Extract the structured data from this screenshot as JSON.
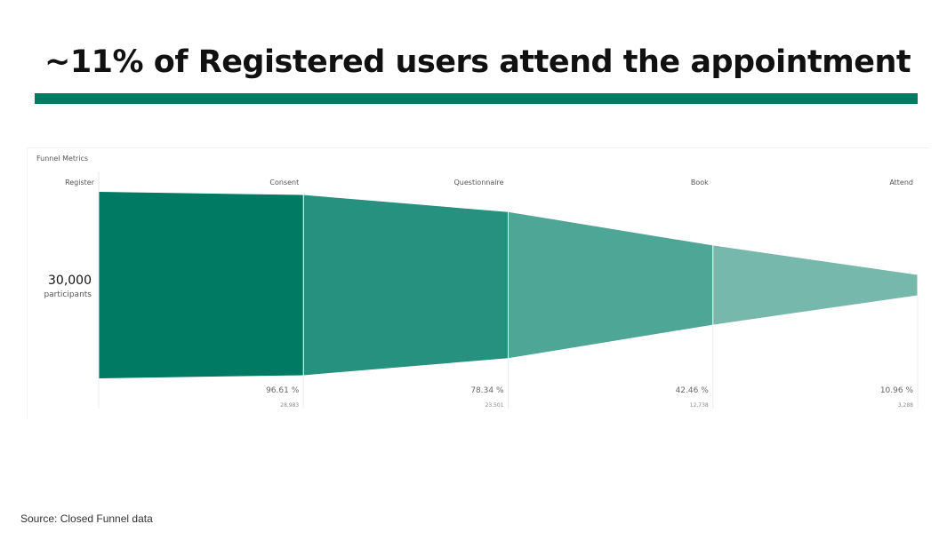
{
  "page": {
    "title": "~11% of Registered users attend the appointment",
    "source": "Source: Closed Funnel data",
    "accent_color": "#007a63"
  },
  "chart_data": {
    "type": "funnel",
    "title": "Funnel Metrics",
    "start": {
      "value_label": "30,000",
      "unit_label": "participants"
    },
    "stages": [
      {
        "name": "Register",
        "value": 30000,
        "percent_label": "",
        "value_label": "",
        "color": "#007a63"
      },
      {
        "name": "Consent",
        "value": 28983,
        "percent_label": "96.61 %",
        "value_label": "28,983",
        "color": "#26917f"
      },
      {
        "name": "Questionnaire",
        "value": 23501,
        "percent_label": "78.34 %",
        "value_label": "23,501",
        "color": "#4ea697"
      },
      {
        "name": "Book",
        "value": 12738,
        "percent_label": "42.46 %",
        "value_label": "12,738",
        "color": "#77b8ad"
      },
      {
        "name": "Attend",
        "value": 3288,
        "percent_label": "10.96 %",
        "value_label": "3,288"
      }
    ]
  }
}
